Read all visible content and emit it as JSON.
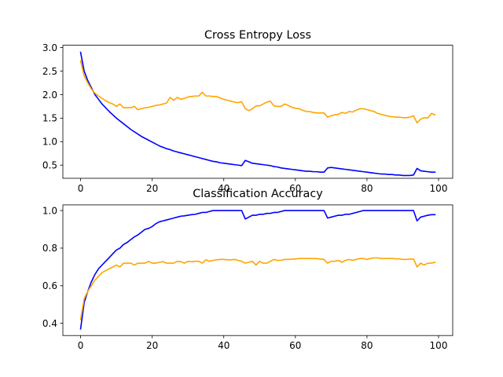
{
  "chart_data": [
    {
      "type": "line",
      "title": "Cross Entropy Loss",
      "xlabel": "",
      "ylabel": "",
      "xlim": [
        -4.95,
        103.95
      ],
      "ylim": [
        0.22,
        3.05
      ],
      "xticks": [
        0,
        20,
        40,
        60,
        80,
        100
      ],
      "yticks": [
        0.5,
        1.0,
        1.5,
        2.0,
        2.5,
        3.0
      ],
      "ytick_labels": [
        "0.5",
        "1.0",
        "1.5",
        "2.0",
        "2.5",
        "3.0"
      ],
      "grid": false,
      "series": [
        {
          "color": "#0000ff",
          "x": [
            0,
            1,
            2,
            3,
            4,
            5,
            6,
            7,
            8,
            9,
            10,
            11,
            12,
            13,
            14,
            15,
            16,
            17,
            18,
            19,
            20,
            21,
            22,
            23,
            24,
            25,
            26,
            27,
            28,
            29,
            30,
            31,
            32,
            33,
            34,
            35,
            36,
            37,
            38,
            39,
            40,
            41,
            42,
            43,
            44,
            45,
            46,
            47,
            48,
            49,
            50,
            51,
            52,
            53,
            54,
            55,
            56,
            57,
            58,
            59,
            60,
            61,
            62,
            63,
            64,
            65,
            66,
            67,
            68,
            69,
            70,
            71,
            72,
            73,
            74,
            75,
            76,
            77,
            78,
            79,
            80,
            81,
            82,
            83,
            84,
            85,
            86,
            87,
            88,
            89,
            90,
            91,
            92,
            93,
            94,
            95,
            96,
            97,
            98,
            99
          ],
          "values": [
            2.9,
            2.5,
            2.3,
            2.15,
            2.0,
            1.9,
            1.8,
            1.72,
            1.64,
            1.57,
            1.5,
            1.44,
            1.38,
            1.32,
            1.26,
            1.21,
            1.16,
            1.11,
            1.07,
            1.03,
            0.99,
            0.95,
            0.91,
            0.88,
            0.85,
            0.83,
            0.8,
            0.78,
            0.76,
            0.74,
            0.72,
            0.7,
            0.68,
            0.66,
            0.64,
            0.62,
            0.6,
            0.58,
            0.57,
            0.55,
            0.54,
            0.53,
            0.52,
            0.51,
            0.5,
            0.49,
            0.6,
            0.57,
            0.54,
            0.53,
            0.52,
            0.51,
            0.5,
            0.49,
            0.47,
            0.46,
            0.44,
            0.43,
            0.42,
            0.41,
            0.4,
            0.39,
            0.38,
            0.37,
            0.37,
            0.36,
            0.36,
            0.35,
            0.35,
            0.44,
            0.45,
            0.44,
            0.43,
            0.42,
            0.41,
            0.4,
            0.39,
            0.38,
            0.37,
            0.36,
            0.35,
            0.34,
            0.33,
            0.32,
            0.31,
            0.31,
            0.3,
            0.3,
            0.29,
            0.29,
            0.28,
            0.28,
            0.28,
            0.29,
            0.43,
            0.38,
            0.37,
            0.36,
            0.35,
            0.35
          ]
        },
        {
          "color": "#ffa500",
          "x": [
            0,
            1,
            2,
            3,
            4,
            5,
            6,
            7,
            8,
            9,
            10,
            11,
            12,
            13,
            14,
            15,
            16,
            17,
            18,
            19,
            20,
            21,
            22,
            23,
            24,
            25,
            26,
            27,
            28,
            29,
            30,
            31,
            32,
            33,
            34,
            35,
            36,
            37,
            38,
            39,
            40,
            41,
            42,
            43,
            44,
            45,
            46,
            47,
            48,
            49,
            50,
            51,
            52,
            53,
            54,
            55,
            56,
            57,
            58,
            59,
            60,
            61,
            62,
            63,
            64,
            65,
            66,
            67,
            68,
            69,
            70,
            71,
            72,
            73,
            74,
            75,
            76,
            77,
            78,
            79,
            80,
            81,
            82,
            83,
            84,
            85,
            86,
            87,
            88,
            89,
            90,
            91,
            92,
            93,
            94,
            95,
            96,
            97,
            98,
            99
          ],
          "values": [
            2.72,
            2.4,
            2.25,
            2.12,
            2.03,
            1.97,
            1.92,
            1.87,
            1.83,
            1.8,
            1.75,
            1.8,
            1.72,
            1.72,
            1.72,
            1.75,
            1.68,
            1.7,
            1.72,
            1.73,
            1.75,
            1.77,
            1.78,
            1.8,
            1.82,
            1.94,
            1.88,
            1.94,
            1.9,
            1.92,
            1.95,
            1.96,
            1.97,
            1.97,
            2.05,
            1.97,
            1.97,
            1.96,
            1.96,
            1.93,
            1.9,
            1.88,
            1.86,
            1.84,
            1.83,
            1.85,
            1.7,
            1.66,
            1.7,
            1.76,
            1.76,
            1.8,
            1.84,
            1.86,
            1.76,
            1.75,
            1.75,
            1.8,
            1.77,
            1.73,
            1.71,
            1.7,
            1.67,
            1.64,
            1.64,
            1.62,
            1.61,
            1.61,
            1.61,
            1.52,
            1.55,
            1.57,
            1.58,
            1.62,
            1.6,
            1.64,
            1.63,
            1.67,
            1.7,
            1.7,
            1.68,
            1.66,
            1.64,
            1.6,
            1.58,
            1.56,
            1.54,
            1.53,
            1.52,
            1.52,
            1.51,
            1.51,
            1.52,
            1.55,
            1.4,
            1.48,
            1.51,
            1.5,
            1.6,
            1.57
          ]
        }
      ]
    },
    {
      "type": "line",
      "title": "Classification Accuracy",
      "xlabel": "",
      "ylabel": "",
      "xlim": [
        -4.95,
        103.95
      ],
      "ylim": [
        0.335,
        1.03
      ],
      "xticks": [
        0,
        20,
        40,
        60,
        80,
        100
      ],
      "yticks": [
        0.4,
        0.6,
        0.8,
        1.0
      ],
      "ytick_labels": [
        "0.4",
        "0.6",
        "0.8",
        "1.0"
      ],
      "grid": false,
      "series": [
        {
          "color": "#0000ff",
          "x": [
            0,
            1,
            2,
            3,
            4,
            5,
            6,
            7,
            8,
            9,
            10,
            11,
            12,
            13,
            14,
            15,
            16,
            17,
            18,
            19,
            20,
            21,
            22,
            23,
            24,
            25,
            26,
            27,
            28,
            29,
            30,
            31,
            32,
            33,
            34,
            35,
            36,
            37,
            38,
            39,
            40,
            41,
            42,
            43,
            44,
            45,
            46,
            47,
            48,
            49,
            50,
            51,
            52,
            53,
            54,
            55,
            56,
            57,
            58,
            59,
            60,
            61,
            62,
            63,
            64,
            65,
            66,
            67,
            68,
            69,
            70,
            71,
            72,
            73,
            74,
            75,
            76,
            77,
            78,
            79,
            80,
            81,
            82,
            83,
            84,
            85,
            86,
            87,
            88,
            89,
            90,
            91,
            92,
            93,
            94,
            95,
            96,
            97,
            98,
            99
          ],
          "values": [
            0.37,
            0.51,
            0.57,
            0.62,
            0.66,
            0.69,
            0.71,
            0.73,
            0.75,
            0.77,
            0.79,
            0.8,
            0.82,
            0.83,
            0.845,
            0.86,
            0.87,
            0.885,
            0.9,
            0.905,
            0.915,
            0.93,
            0.94,
            0.945,
            0.95,
            0.955,
            0.96,
            0.965,
            0.97,
            0.972,
            0.975,
            0.978,
            0.98,
            0.985,
            0.99,
            0.99,
            0.995,
            1.0,
            1.0,
            1.0,
            1.0,
            1.0,
            1.0,
            1.0,
            1.0,
            1.0,
            0.955,
            0.965,
            0.975,
            0.975,
            0.98,
            0.98,
            0.985,
            0.985,
            0.99,
            0.99,
            0.995,
            1.0,
            1.0,
            1.0,
            1.0,
            1.0,
            1.0,
            1.0,
            1.0,
            1.0,
            1.0,
            1.0,
            1.0,
            0.96,
            0.965,
            0.97,
            0.975,
            0.975,
            0.98,
            0.98,
            0.985,
            0.99,
            0.995,
            1.0,
            1.0,
            1.0,
            1.0,
            1.0,
            1.0,
            1.0,
            1.0,
            1.0,
            1.0,
            1.0,
            1.0,
            1.0,
            1.0,
            1.0,
            0.945,
            0.965,
            0.97,
            0.975,
            0.978,
            0.978
          ]
        },
        {
          "color": "#ffa500",
          "x": [
            0,
            1,
            2,
            3,
            4,
            5,
            6,
            7,
            8,
            9,
            10,
            11,
            12,
            13,
            14,
            15,
            16,
            17,
            18,
            19,
            20,
            21,
            22,
            23,
            24,
            25,
            26,
            27,
            28,
            29,
            30,
            31,
            32,
            33,
            34,
            35,
            36,
            37,
            38,
            39,
            40,
            41,
            42,
            43,
            44,
            45,
            46,
            47,
            48,
            49,
            50,
            51,
            52,
            53,
            54,
            55,
            56,
            57,
            58,
            59,
            60,
            61,
            62,
            63,
            64,
            65,
            66,
            67,
            68,
            69,
            70,
            71,
            72,
            73,
            74,
            75,
            76,
            77,
            78,
            79,
            80,
            81,
            82,
            83,
            84,
            85,
            86,
            87,
            88,
            89,
            90,
            91,
            92,
            93,
            94,
            95,
            96,
            97,
            98,
            99
          ],
          "values": [
            0.42,
            0.53,
            0.57,
            0.6,
            0.63,
            0.65,
            0.67,
            0.68,
            0.69,
            0.7,
            0.71,
            0.7,
            0.72,
            0.72,
            0.72,
            0.71,
            0.72,
            0.72,
            0.72,
            0.73,
            0.72,
            0.72,
            0.725,
            0.728,
            0.72,
            0.72,
            0.72,
            0.73,
            0.728,
            0.72,
            0.73,
            0.728,
            0.73,
            0.73,
            0.72,
            0.738,
            0.73,
            0.735,
            0.738,
            0.74,
            0.74,
            0.738,
            0.738,
            0.74,
            0.735,
            0.73,
            0.72,
            0.725,
            0.73,
            0.71,
            0.73,
            0.72,
            0.72,
            0.73,
            0.74,
            0.735,
            0.735,
            0.74,
            0.74,
            0.742,
            0.742,
            0.745,
            0.745,
            0.745,
            0.745,
            0.745,
            0.744,
            0.742,
            0.74,
            0.72,
            0.73,
            0.73,
            0.735,
            0.725,
            0.735,
            0.74,
            0.735,
            0.74,
            0.745,
            0.745,
            0.74,
            0.745,
            0.748,
            0.748,
            0.745,
            0.745,
            0.745,
            0.745,
            0.743,
            0.743,
            0.74,
            0.74,
            0.742,
            0.742,
            0.7,
            0.72,
            0.71,
            0.72,
            0.72,
            0.725
          ]
        }
      ]
    }
  ]
}
